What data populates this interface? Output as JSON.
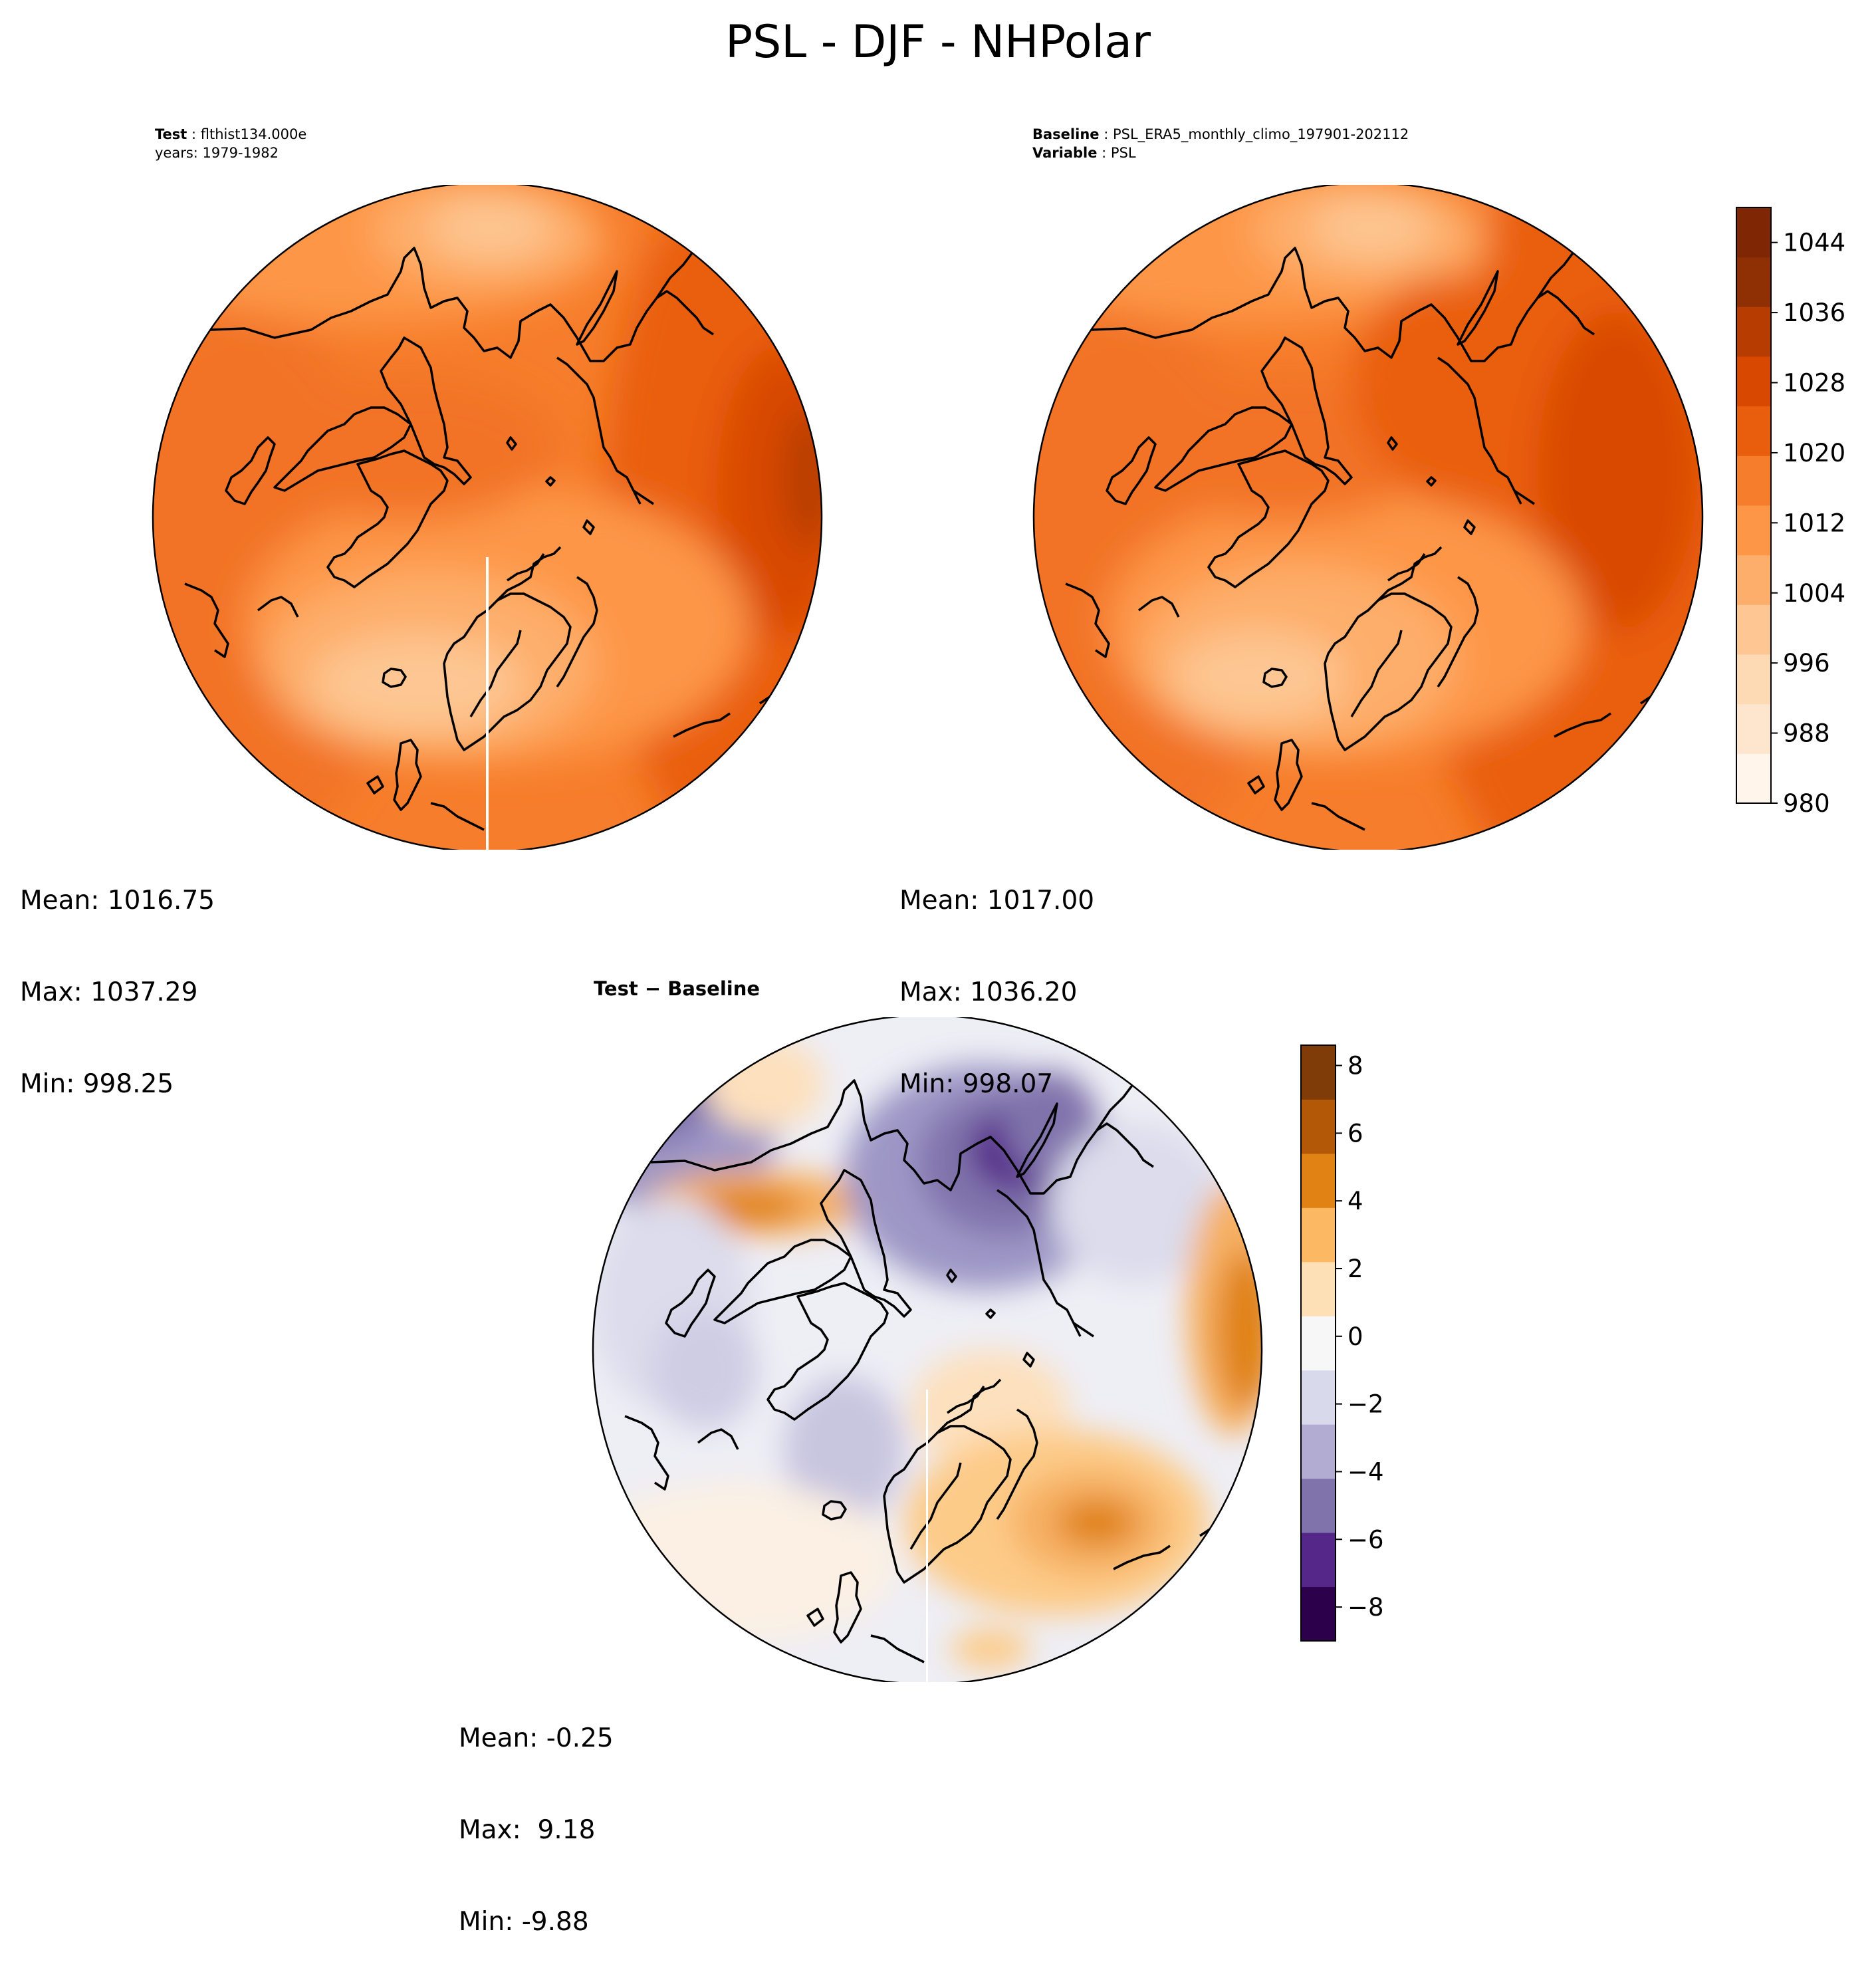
{
  "title": "PSL - DJF - NHPolar",
  "panels": {
    "test": {
      "label_key": "Test",
      "label_value": "flthist134.000e",
      "years": "years: 1979-1982",
      "mean": "Mean: 1016.75",
      "max": "Max: 1037.29",
      "min": "Min: 998.25"
    },
    "baseline": {
      "label_key": "Baseline",
      "label_value": "PSL_ERA5_monthly_climo_197901-202112",
      "variable_key": "Variable",
      "variable_value": "PSL",
      "mean": "Mean: 1017.00",
      "max": "Max: 1036.20",
      "min": "Min: 998.07"
    },
    "diff": {
      "title_left": "Test",
      "title_op": " − ",
      "title_right": "Baseline",
      "mean": "Mean: -0.25",
      "max": "Max:  9.18",
      "min": "Min: -9.88"
    }
  },
  "colorbars": {
    "main": {
      "ticks": [
        "980",
        "988",
        "996",
        "1004",
        "1012",
        "1020",
        "1028",
        "1036",
        "1044"
      ],
      "tick_values": [
        980,
        988,
        996,
        1004,
        1012,
        1020,
        1028,
        1036,
        1044
      ],
      "range": [
        980,
        1048
      ],
      "colors": [
        "#fff5eb",
        "#fee6ce",
        "#fdd9b4",
        "#fdc692",
        "#fdae6b",
        "#fd9647",
        "#f67d2b",
        "#e95e0d",
        "#d94801",
        "#b63c02",
        "#8f3004",
        "#7f2704"
      ]
    },
    "diff": {
      "ticks": [
        "−8",
        "−6",
        "−4",
        "−2",
        "0",
        "2",
        "4",
        "6",
        "8"
      ],
      "tick_values": [
        -8,
        -6,
        -4,
        -2,
        0,
        2,
        4,
        6,
        8
      ],
      "range": [
        -9,
        8.6
      ],
      "colors": [
        "#2d004b",
        "#542788",
        "#8073ac",
        "#b2abd2",
        "#d8daeb",
        "#f7f7f7",
        "#fee0b6",
        "#fdb863",
        "#e08214",
        "#b35806",
        "#7f3b08"
      ]
    }
  }
}
